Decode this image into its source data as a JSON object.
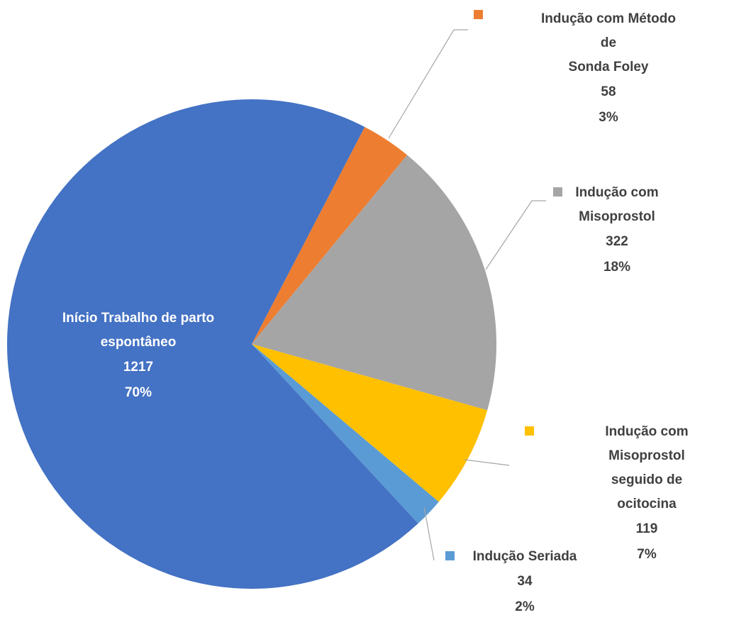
{
  "chart_data": {
    "type": "pie",
    "categories": [
      "Indução com Método de\nSonda Foley",
      "Indução com\nMisoprostol",
      "Indução com\nMisoprostol seguido de\nocitocina",
      "Indução Seriada",
      "Início Trabalho de parto\nespontâneo"
    ],
    "values": [
      58,
      322,
      119,
      34,
      1217
    ],
    "percent_labels": [
      "3%",
      "18%",
      "7%",
      "2%",
      "70%"
    ],
    "colors": [
      "#ED7D31",
      "#A5A5A5",
      "#FFC000",
      "#5B9BD5",
      "#4472C4"
    ]
  }
}
